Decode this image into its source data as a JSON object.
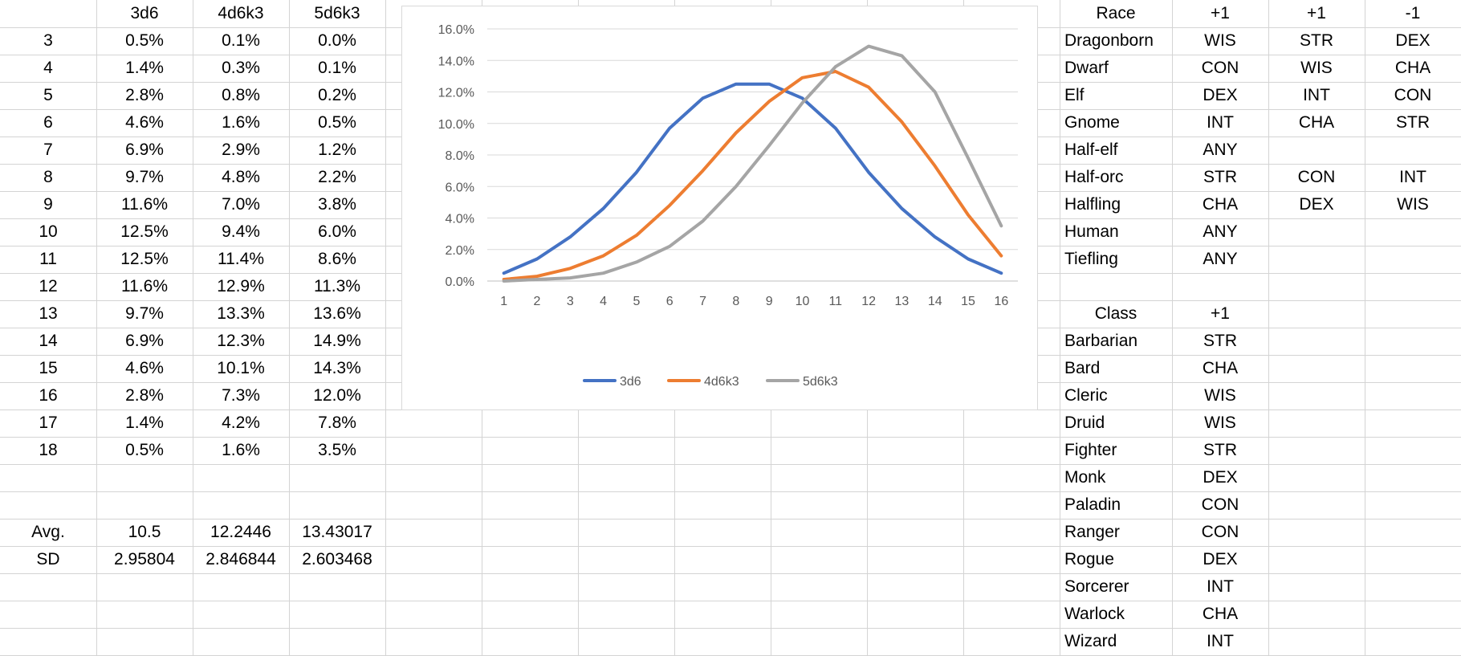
{
  "sheet": {
    "dice_header": [
      "",
      "3d6",
      "4d6k3",
      "5d6k3"
    ],
    "dice_rows": [
      [
        "3",
        "0.5%",
        "0.1%",
        "0.0%"
      ],
      [
        "4",
        "1.4%",
        "0.3%",
        "0.1%"
      ],
      [
        "5",
        "2.8%",
        "0.8%",
        "0.2%"
      ],
      [
        "6",
        "4.6%",
        "1.6%",
        "0.5%"
      ],
      [
        "7",
        "6.9%",
        "2.9%",
        "1.2%"
      ],
      [
        "8",
        "9.7%",
        "4.8%",
        "2.2%"
      ],
      [
        "9",
        "11.6%",
        "7.0%",
        "3.8%"
      ],
      [
        "10",
        "12.5%",
        "9.4%",
        "6.0%"
      ],
      [
        "11",
        "12.5%",
        "11.4%",
        "8.6%"
      ],
      [
        "12",
        "11.6%",
        "12.9%",
        "11.3%"
      ],
      [
        "13",
        "9.7%",
        "13.3%",
        "13.6%"
      ],
      [
        "14",
        "6.9%",
        "12.3%",
        "14.9%"
      ],
      [
        "15",
        "4.6%",
        "10.1%",
        "14.3%"
      ],
      [
        "16",
        "2.8%",
        "7.3%",
        "12.0%"
      ],
      [
        "17",
        "1.4%",
        "4.2%",
        "7.8%"
      ],
      [
        "18",
        "0.5%",
        "1.6%",
        "3.5%"
      ]
    ],
    "stats_rows": [
      [
        "Avg.",
        "10.5",
        "12.2446",
        "13.43017"
      ],
      [
        "SD",
        "2.95804",
        "2.846844",
        "2.603468"
      ]
    ],
    "race_header": [
      "Race",
      "+1",
      "+1",
      "-1"
    ],
    "race_rows": [
      [
        "Dragonborn",
        "WIS",
        "STR",
        "DEX"
      ],
      [
        "Dwarf",
        "CON",
        "WIS",
        "CHA"
      ],
      [
        "Elf",
        "DEX",
        "INT",
        "CON"
      ],
      [
        "Gnome",
        "INT",
        "CHA",
        "STR"
      ],
      [
        "Half-elf",
        "ANY",
        "",
        ""
      ],
      [
        "Half-orc",
        "STR",
        "CON",
        "INT"
      ],
      [
        "Halfling",
        "CHA",
        "DEX",
        "WIS"
      ],
      [
        "Human",
        "ANY",
        "",
        ""
      ],
      [
        "Tiefling",
        "ANY",
        "",
        ""
      ]
    ],
    "class_header": [
      "Class",
      "+1"
    ],
    "class_rows": [
      [
        "Barbarian",
        "STR"
      ],
      [
        "Bard",
        "CHA"
      ],
      [
        "Cleric",
        "WIS"
      ],
      [
        "Druid",
        "WIS"
      ],
      [
        "Fighter",
        "STR"
      ],
      [
        "Monk",
        "DEX"
      ],
      [
        "Paladin",
        "CON"
      ],
      [
        "Ranger",
        "CON"
      ],
      [
        "Rogue",
        "DEX"
      ],
      [
        "Sorcerer",
        "INT"
      ],
      [
        "Warlock",
        "CHA"
      ],
      [
        "Wizard",
        "INT"
      ]
    ]
  },
  "chart_data": {
    "type": "line",
    "title": "",
    "xlabel": "",
    "ylabel": "",
    "x": [
      1,
      2,
      3,
      4,
      5,
      6,
      7,
      8,
      9,
      10,
      11,
      12,
      13,
      14,
      15,
      16
    ],
    "ylim": [
      0,
      16
    ],
    "y_ticks": [
      "0.0%",
      "2.0%",
      "4.0%",
      "6.0%",
      "8.0%",
      "10.0%",
      "12.0%",
      "14.0%",
      "16.0%"
    ],
    "grid": true,
    "legend_position": "bottom",
    "series": [
      {
        "name": "3d6",
        "color": "#4472c4",
        "values": [
          0.5,
          1.4,
          2.8,
          4.6,
          6.9,
          9.7,
          11.6,
          12.5,
          12.5,
          11.6,
          9.7,
          6.9,
          4.6,
          2.8,
          1.4,
          0.5
        ]
      },
      {
        "name": "4d6k3",
        "color": "#ed7d31",
        "values": [
          0.1,
          0.3,
          0.8,
          1.6,
          2.9,
          4.8,
          7.0,
          9.4,
          11.4,
          12.9,
          13.3,
          12.3,
          10.1,
          7.3,
          4.2,
          1.6
        ]
      },
      {
        "name": "5d6k3",
        "color": "#a5a5a5",
        "values": [
          0.0,
          0.1,
          0.2,
          0.5,
          1.2,
          2.2,
          3.8,
          6.0,
          8.6,
          11.3,
          13.6,
          14.9,
          14.3,
          12.0,
          7.8,
          3.5
        ]
      }
    ]
  }
}
